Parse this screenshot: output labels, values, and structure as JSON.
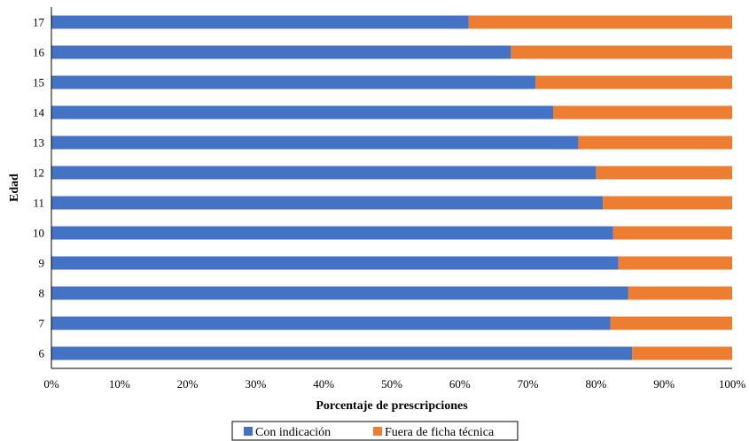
{
  "chart_data": {
    "type": "bar",
    "orientation": "horizontal",
    "stacked": "100%",
    "categories": [
      "17",
      "16",
      "15",
      "14",
      "13",
      "12",
      "11",
      "10",
      "9",
      "8",
      "7",
      "6"
    ],
    "series": [
      {
        "name": "Con indicación",
        "color": "#4472C4",
        "values": [
          61.3,
          67.5,
          71.1,
          73.7,
          77.4,
          80.0,
          81.0,
          82.5,
          83.3,
          84.7,
          82.1,
          85.3
        ]
      },
      {
        "name": "Fuera de ficha técnica",
        "color": "#ED7D31",
        "values": [
          38.7,
          32.5,
          28.9,
          26.3,
          22.6,
          20.0,
          19.0,
          17.5,
          16.7,
          15.3,
          17.9,
          14.7
        ]
      }
    ],
    "xlabel": "Porcentaje de prescripciones",
    "ylabel": "Edad",
    "xlim": [
      0,
      100
    ],
    "xticks": [
      "0%",
      "10%",
      "20%",
      "30%",
      "40%",
      "50%",
      "60%",
      "70%",
      "80%",
      "90%",
      "100%"
    ],
    "grid": false,
    "legend_position": "bottom"
  }
}
